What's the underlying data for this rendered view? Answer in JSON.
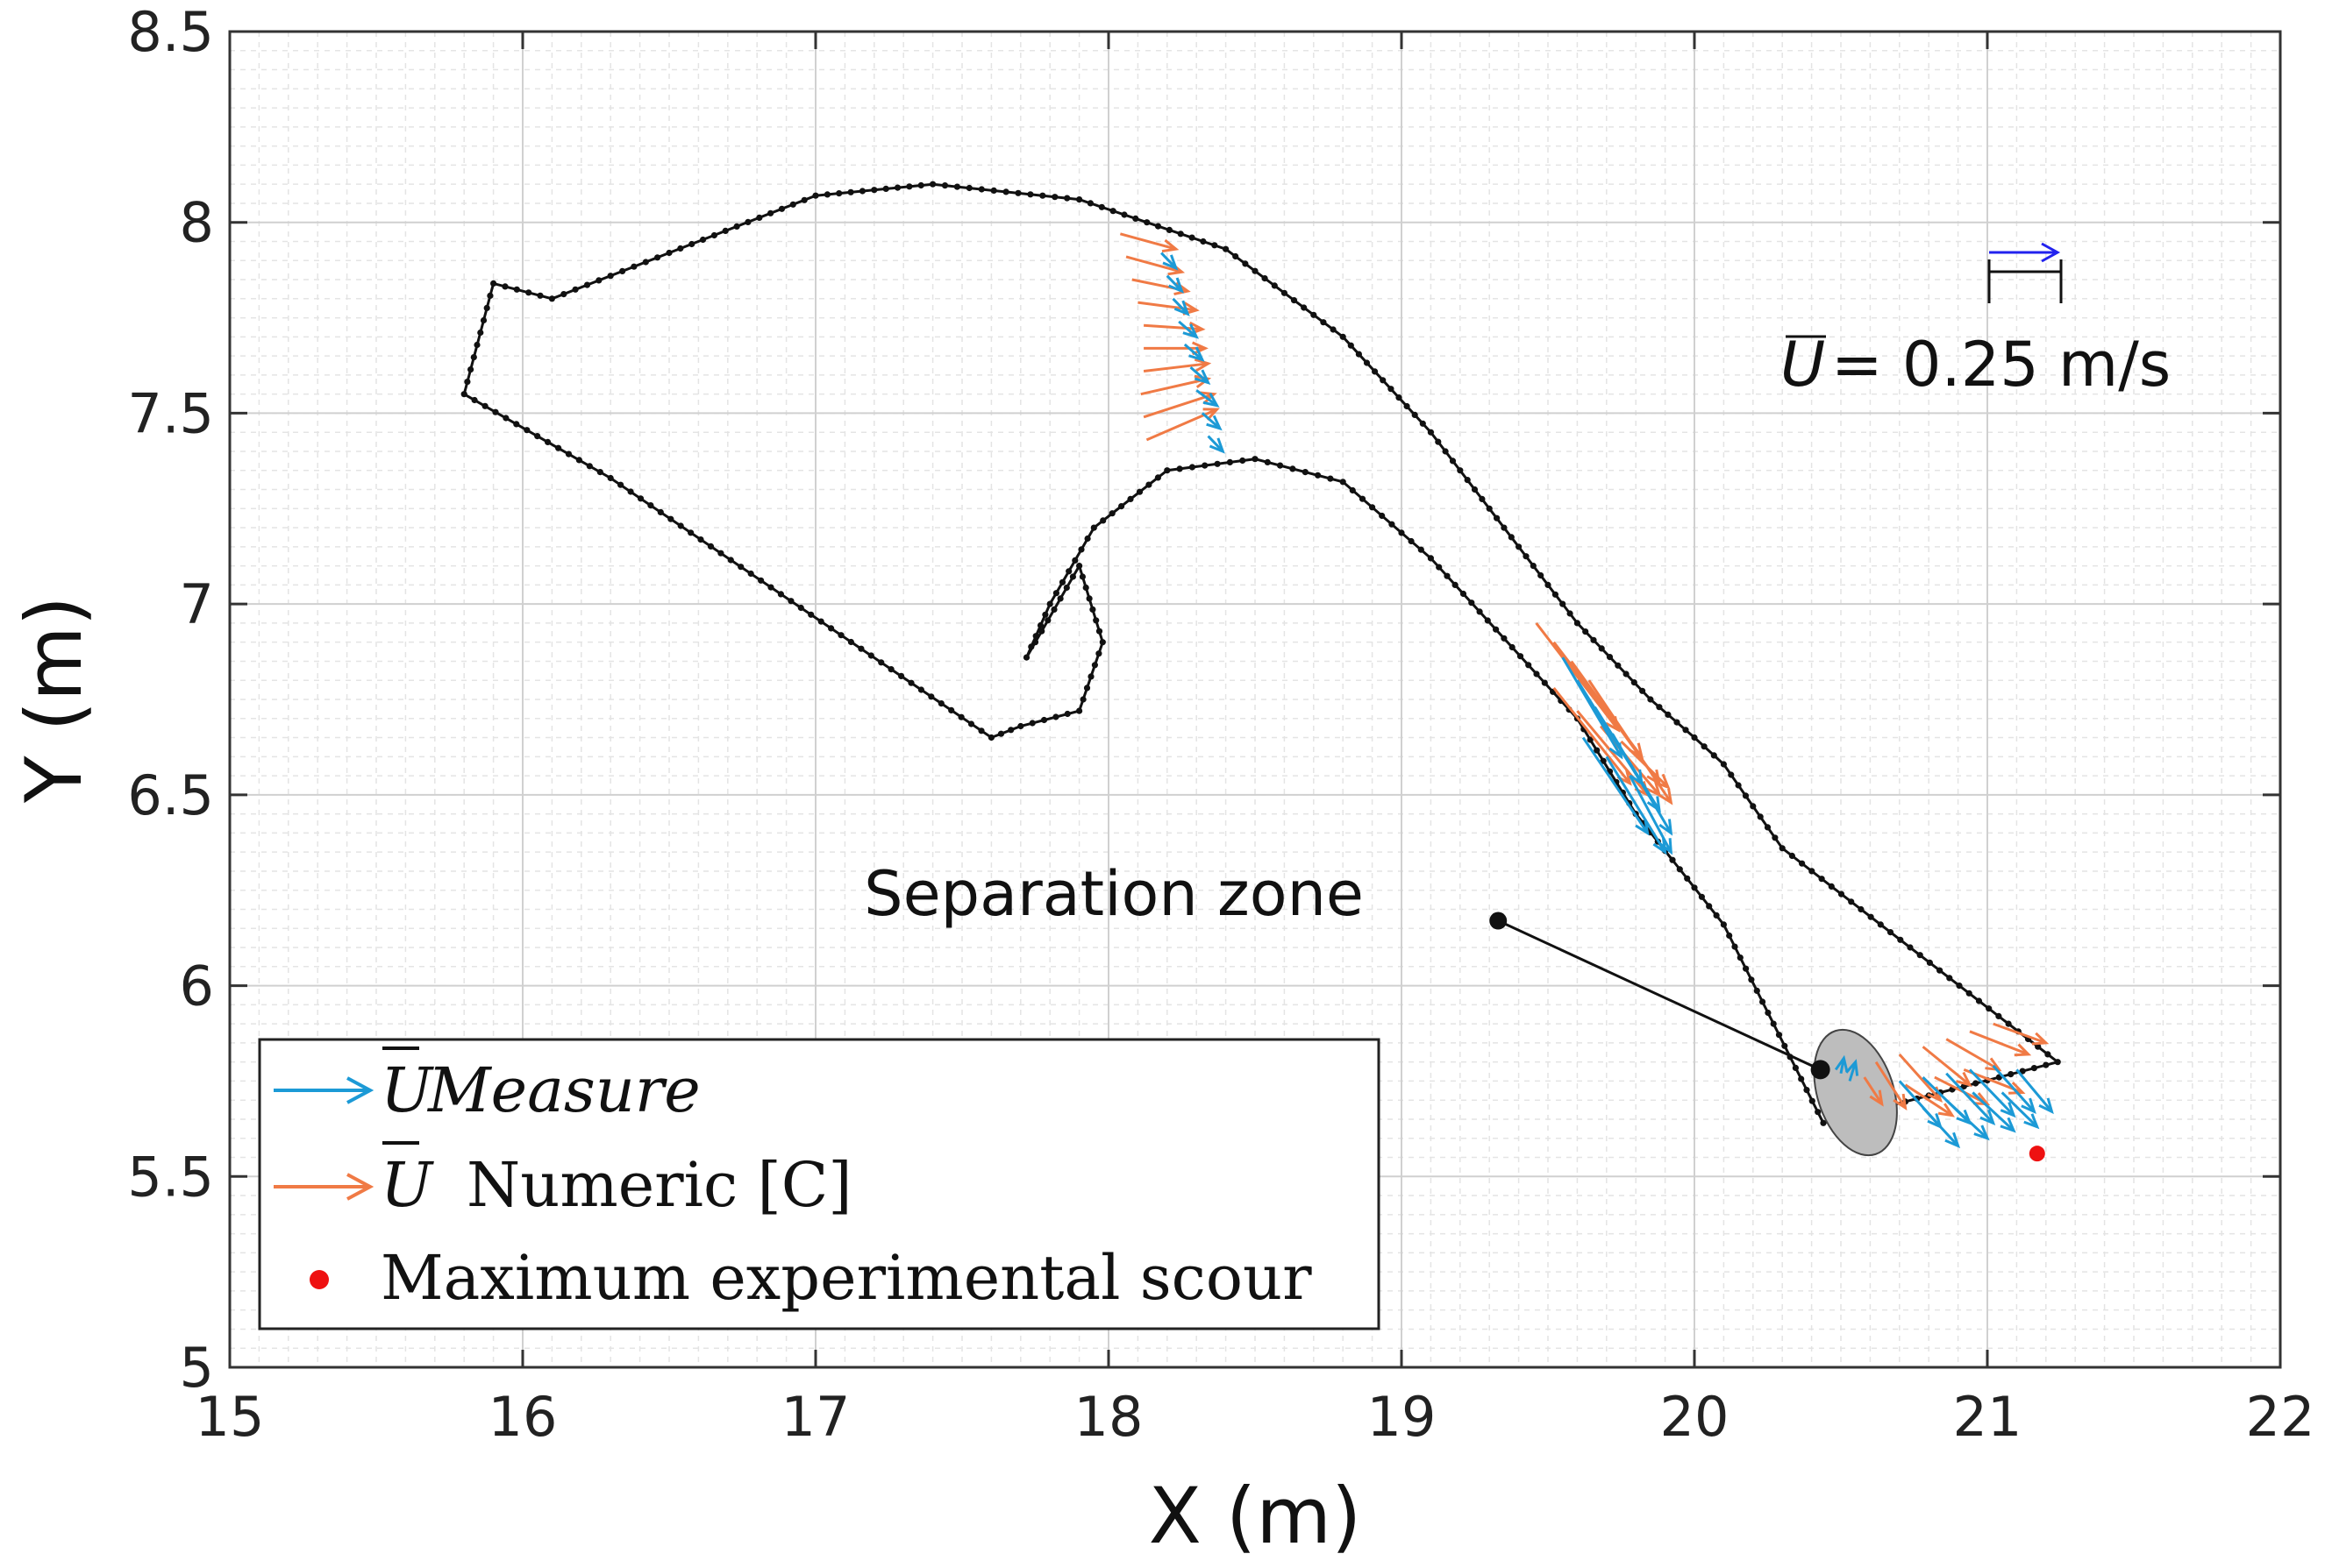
{
  "chart_data": {
    "type": "quiver",
    "xlabel": "X (m)",
    "ylabel": "Y (m)",
    "xlim": [
      15,
      22
    ],
    "ylim": [
      5,
      8.5
    ],
    "xticks": [
      15,
      16,
      17,
      18,
      19,
      20,
      21,
      22
    ],
    "yticks": [
      5,
      5.5,
      6,
      6.5,
      7,
      7.5,
      8,
      8.5
    ],
    "xtick_labels": [
      "15",
      "16",
      "17",
      "18",
      "19",
      "20",
      "21",
      "22"
    ],
    "ytick_labels": [
      "5",
      "5.5",
      "6",
      "6.5",
      "7",
      "7.5",
      "8",
      "8.5"
    ],
    "minor_step_x": 0.1,
    "minor_step_y": 0.05,
    "grid": true,
    "colors": {
      "measure": "#1c9ad6",
      "numeric": "#f07a45",
      "scour": "#ee1111",
      "boundary": "#111111",
      "scale_arrow": "#2222ee",
      "separation_fill": "#bdbdbd"
    },
    "outer_bank": [
      [
        15.8,
        7.55
      ],
      [
        15.9,
        7.84
      ],
      [
        16.1,
        7.8
      ],
      [
        16.5,
        7.92
      ],
      [
        17.0,
        8.07
      ],
      [
        17.4,
        8.1
      ],
      [
        17.9,
        8.06
      ],
      [
        18.4,
        7.93
      ],
      [
        18.8,
        7.7
      ],
      [
        19.1,
        7.45
      ],
      [
        19.3,
        7.25
      ],
      [
        19.6,
        6.95
      ],
      [
        19.85,
        6.75
      ],
      [
        20.0,
        6.65
      ],
      [
        20.1,
        6.58
      ],
      [
        20.3,
        6.36
      ],
      [
        21.24,
        5.8
      ],
      [
        20.44,
        5.64
      ],
      [
        20.1,
        6.16
      ],
      [
        19.8,
        6.45
      ],
      [
        19.6,
        6.7
      ],
      [
        19.1,
        7.12
      ],
      [
        18.8,
        7.32
      ],
      [
        18.5,
        7.38
      ],
      [
        18.2,
        7.35
      ],
      [
        17.95,
        7.2
      ],
      [
        17.8,
        7.0
      ],
      [
        17.72,
        6.86
      ],
      [
        17.75,
        6.9
      ],
      [
        17.9,
        7.1
      ],
      [
        17.98,
        6.9
      ],
      [
        17.9,
        6.72
      ],
      [
        17.7,
        6.68
      ],
      [
        17.6,
        6.65
      ],
      [
        16.3,
        7.33
      ],
      [
        15.8,
        7.55
      ]
    ],
    "annotations": {
      "separation_zone": "Separation zone",
      "scale_label": "= 0.25 m/s",
      "scale_symbol": "U",
      "scale_value_ms": 0.25
    },
    "separation_zone": {
      "center": [
        20.55,
        5.72
      ],
      "radius": [
        0.13,
        0.17
      ],
      "label_anchor": [
        19.33,
        6.17
      ],
      "target": [
        20.43,
        5.78
      ]
    },
    "scour_point": [
      21.17,
      5.56
    ],
    "series": [
      {
        "name": "U Measure",
        "vectors": [
          [
            18.18,
            7.92,
            0.05,
            -0.04
          ],
          [
            18.2,
            7.86,
            0.05,
            -0.04
          ],
          [
            18.22,
            7.8,
            0.05,
            -0.04
          ],
          [
            18.24,
            7.74,
            0.06,
            -0.04
          ],
          [
            18.26,
            7.68,
            0.06,
            -0.04
          ],
          [
            18.28,
            7.62,
            0.06,
            -0.04
          ],
          [
            18.3,
            7.56,
            0.07,
            -0.04
          ],
          [
            18.32,
            7.5,
            0.06,
            -0.04
          ],
          [
            18.34,
            7.44,
            0.05,
            -0.04
          ],
          [
            19.55,
            6.86,
            0.2,
            -0.26
          ],
          [
            19.6,
            6.8,
            0.22,
            -0.27
          ],
          [
            19.66,
            6.73,
            0.22,
            -0.27
          ],
          [
            19.72,
            6.66,
            0.2,
            -0.26
          ],
          [
            19.62,
            6.65,
            0.22,
            -0.25
          ],
          [
            19.7,
            6.6,
            0.2,
            -0.25
          ],
          [
            19.78,
            6.55,
            0.14,
            -0.2
          ],
          [
            20.5,
            5.77,
            0.01,
            0.04
          ],
          [
            20.53,
            5.75,
            0.02,
            0.05
          ],
          [
            20.7,
            5.75,
            0.14,
            -0.12
          ],
          [
            20.78,
            5.76,
            0.16,
            -0.12
          ],
          [
            20.86,
            5.77,
            0.16,
            -0.13
          ],
          [
            20.94,
            5.78,
            0.15,
            -0.12
          ],
          [
            21.02,
            5.79,
            0.14,
            -0.12
          ],
          [
            21.1,
            5.78,
            0.12,
            -0.11
          ],
          [
            20.78,
            5.68,
            0.12,
            -0.1
          ],
          [
            20.86,
            5.7,
            0.14,
            -0.1
          ],
          [
            20.95,
            5.72,
            0.14,
            -0.1
          ],
          [
            21.05,
            5.72,
            0.12,
            -0.09
          ]
        ]
      },
      {
        "name": "U Numeric [C]",
        "vectors": [
          [
            18.04,
            7.97,
            0.19,
            -0.04
          ],
          [
            18.06,
            7.91,
            0.19,
            -0.04
          ],
          [
            18.08,
            7.85,
            0.19,
            -0.03
          ],
          [
            18.1,
            7.79,
            0.2,
            -0.02
          ],
          [
            18.12,
            7.73,
            0.2,
            -0.01
          ],
          [
            18.12,
            7.67,
            0.21,
            0.0
          ],
          [
            18.12,
            7.61,
            0.22,
            0.02
          ],
          [
            18.11,
            7.55,
            0.23,
            0.04
          ],
          [
            18.12,
            7.49,
            0.24,
            0.06
          ],
          [
            18.13,
            7.43,
            0.24,
            0.08
          ],
          [
            19.46,
            6.95,
            0.28,
            -0.28
          ],
          [
            19.52,
            6.9,
            0.3,
            -0.3
          ],
          [
            19.58,
            6.85,
            0.3,
            -0.32
          ],
          [
            19.64,
            6.8,
            0.28,
            -0.32
          ],
          [
            19.52,
            6.78,
            0.26,
            -0.25
          ],
          [
            19.6,
            6.72,
            0.24,
            -0.22
          ],
          [
            19.68,
            6.68,
            0.2,
            -0.18
          ],
          [
            19.75,
            6.64,
            0.16,
            -0.12
          ],
          [
            20.58,
            5.76,
            0.06,
            -0.07
          ],
          [
            20.62,
            5.8,
            0.1,
            -0.12
          ],
          [
            20.7,
            5.82,
            0.14,
            -0.12
          ],
          [
            20.78,
            5.84,
            0.16,
            -0.1
          ],
          [
            20.86,
            5.86,
            0.18,
            -0.08
          ],
          [
            20.94,
            5.88,
            0.2,
            -0.06
          ],
          [
            21.02,
            5.9,
            0.18,
            -0.05
          ],
          [
            20.72,
            5.74,
            0.16,
            -0.08
          ],
          [
            20.82,
            5.76,
            0.18,
            -0.07
          ],
          [
            20.92,
            5.78,
            0.2,
            -0.06
          ]
        ]
      },
      {
        "name": "Maximum experimental scour",
        "points": [
          [
            21.17,
            5.56
          ]
        ]
      }
    ],
    "legend": {
      "placement": "bottom-left",
      "entries": [
        {
          "symbol": "U",
          "text": "Measure",
          "kind": "arrow",
          "series": "measure"
        },
        {
          "symbol": "U",
          "text": "Numeric [C]",
          "kind": "arrow",
          "series": "numeric"
        },
        {
          "symbol": "",
          "text": "Maximum experimental scour",
          "kind": "dot",
          "series": "scour"
        }
      ]
    }
  }
}
